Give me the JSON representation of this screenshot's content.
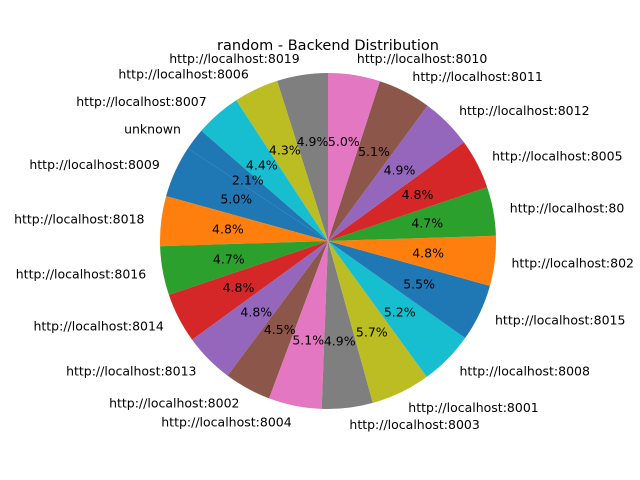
{
  "chart_data": {
    "type": "pie",
    "title": "random - Backend Distribution",
    "start_angle_deg": 90,
    "direction": "counterclockwise",
    "slices": [
      {
        "label": "http://localhost:8019",
        "value": 4.9,
        "pct_label": "4.9%",
        "color": "#7f7f7f"
      },
      {
        "label": "http://localhost:8006",
        "value": 4.3,
        "pct_label": "4.3%",
        "color": "#bcbd22"
      },
      {
        "label": "http://localhost:8007",
        "value": 4.4,
        "pct_label": "4.4%",
        "color": "#17becf"
      },
      {
        "label": "unknown",
        "value": 2.1,
        "pct_label": "2.1%",
        "color": "#1f77b4"
      },
      {
        "label": "http://localhost:8009",
        "value": 5.0,
        "pct_label": "5.0%",
        "color": "#1f77b4"
      },
      {
        "label": "http://localhost:8018",
        "value": 4.8,
        "pct_label": "4.8%",
        "color": "#ff7f0e"
      },
      {
        "label": "http://localhost:8016",
        "value": 4.7,
        "pct_label": "4.7%",
        "color": "#2ca02c"
      },
      {
        "label": "http://localhost:8014",
        "value": 4.8,
        "pct_label": "4.8%",
        "color": "#d62728"
      },
      {
        "label": "http://localhost:8013",
        "value": 4.8,
        "pct_label": "4.8%",
        "color": "#9467bd"
      },
      {
        "label": "http://localhost:8002",
        "value": 4.5,
        "pct_label": "4.5%",
        "color": "#8c564b"
      },
      {
        "label": "http://localhost:8004",
        "value": 5.1,
        "pct_label": "5.1%",
        "color": "#e377c2"
      },
      {
        "label": "http://localhost:8003",
        "value": 4.9,
        "pct_label": "4.9%",
        "color": "#7f7f7f"
      },
      {
        "label": "http://localhost:8001",
        "value": 5.7,
        "pct_label": "5.7%",
        "color": "#bcbd22"
      },
      {
        "label": "http://localhost:8008",
        "value": 5.2,
        "pct_label": "5.2%",
        "color": "#17becf"
      },
      {
        "label": "http://localhost:8015",
        "value": 5.5,
        "pct_label": "5.5%",
        "color": "#1f77b4"
      },
      {
        "label": "http://localhost:802",
        "value": 4.8,
        "pct_label": "4.8%",
        "color": "#ff7f0e"
      },
      {
        "label": "http://localhost:80",
        "value": 4.7,
        "pct_label": "4.7%",
        "color": "#2ca02c"
      },
      {
        "label": "http://localhost:8005",
        "value": 4.8,
        "pct_label": "4.8%",
        "color": "#d62728"
      },
      {
        "label": "http://localhost:8012",
        "value": 4.9,
        "pct_label": "4.9%",
        "color": "#9467bd"
      },
      {
        "label": "http://localhost:8011",
        "value": 5.1,
        "pct_label": "5.1%",
        "color": "#8c564b"
      },
      {
        "label": "http://localhost:8010",
        "value": 5.0,
        "pct_label": "5.0%",
        "color": "#e377c2"
      }
    ]
  }
}
